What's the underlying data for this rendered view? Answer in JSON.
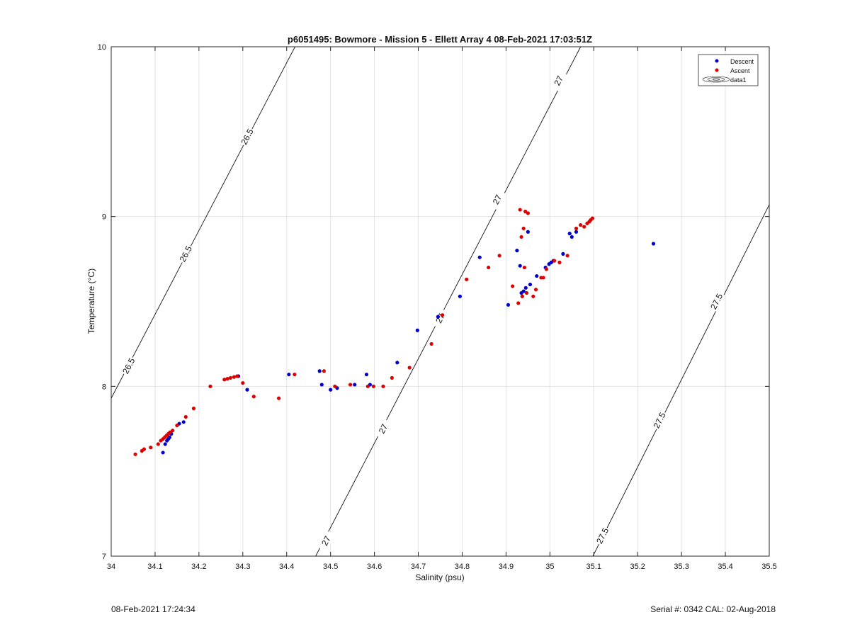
{
  "chart_data": {
    "type": "scatter",
    "title": "p6051495: Bowmore - Mission 5 - Ellett Array 4 08-Feb-2021 17:03:51Z",
    "xlabel": "Salinity (psu)",
    "ylabel": "Temperature (°C)",
    "xlim": [
      34.0,
      35.5
    ],
    "ylim": [
      7.0,
      10.0
    ],
    "x_ticks": [
      "34",
      "34.1",
      "34.2",
      "34.3",
      "34.4",
      "34.5",
      "34.6",
      "34.7",
      "34.8",
      "34.9",
      "35",
      "35.1",
      "35.2",
      "35.3",
      "35.4",
      "35.5"
    ],
    "y_ticks": [
      "7",
      "8",
      "9",
      "10"
    ],
    "grid": true,
    "legend_position": "top-right",
    "legend": [
      {
        "label": "Descent",
        "marker": "dot",
        "color": "#0000cc"
      },
      {
        "label": "Ascent",
        "marker": "dot",
        "color": "#dd0000"
      },
      {
        "label": "data1",
        "marker": "contour"
      }
    ],
    "contours": [
      {
        "level": "26.5",
        "points": [
          [
            34.0,
            7.93
          ],
          [
            34.419,
            10.0
          ]
        ],
        "labels": [
          {
            "x": 34.04,
            "y": 8.12
          },
          {
            "x": 34.17,
            "y": 8.78
          },
          {
            "x": 34.31,
            "y": 9.47
          }
        ]
      },
      {
        "level": "27",
        "points": [
          [
            34.466,
            7.0
          ],
          [
            35.07,
            10.0
          ]
        ],
        "labels": [
          {
            "x": 34.49,
            "y": 7.09
          },
          {
            "x": 34.62,
            "y": 7.75
          },
          {
            "x": 34.75,
            "y": 8.4
          },
          {
            "x": 34.88,
            "y": 9.1
          },
          {
            "x": 35.02,
            "y": 9.8
          }
        ]
      },
      {
        "level": "27.5",
        "points": [
          [
            35.098,
            7.0
          ],
          [
            35.5,
            9.07
          ]
        ],
        "labels": [
          {
            "x": 35.12,
            "y": 7.12
          },
          {
            "x": 35.25,
            "y": 7.8
          },
          {
            "x": 35.38,
            "y": 8.5
          }
        ]
      }
    ],
    "series": [
      {
        "name": "Descent",
        "color": "#0000cc",
        "points": [
          [
            34.118,
            7.61
          ],
          [
            34.123,
            7.66
          ],
          [
            34.127,
            7.68
          ],
          [
            34.13,
            7.69
          ],
          [
            34.133,
            7.7
          ],
          [
            34.137,
            7.72
          ],
          [
            34.155,
            7.78
          ],
          [
            34.165,
            7.79
          ],
          [
            34.29,
            8.06
          ],
          [
            34.31,
            7.98
          ],
          [
            34.405,
            8.07
          ],
          [
            34.475,
            8.09
          ],
          [
            34.48,
            8.01
          ],
          [
            34.5,
            7.98
          ],
          [
            34.515,
            7.99
          ],
          [
            34.555,
            8.01
          ],
          [
            34.582,
            8.07
          ],
          [
            34.59,
            8.01
          ],
          [
            34.652,
            8.14
          ],
          [
            34.698,
            8.33
          ],
          [
            34.745,
            8.41
          ],
          [
            34.795,
            8.53
          ],
          [
            34.84,
            8.76
          ],
          [
            34.905,
            8.48
          ],
          [
            34.925,
            8.8
          ],
          [
            34.932,
            8.71
          ],
          [
            34.935,
            8.55
          ],
          [
            34.94,
            8.56
          ],
          [
            34.945,
            8.58
          ],
          [
            34.95,
            8.91
          ],
          [
            34.955,
            8.6
          ],
          [
            34.97,
            8.65
          ],
          [
            34.99,
            8.7
          ],
          [
            34.998,
            8.72
          ],
          [
            35.003,
            8.73
          ],
          [
            35.008,
            8.74
          ],
          [
            35.03,
            8.78
          ],
          [
            35.045,
            8.9
          ],
          [
            35.05,
            8.88
          ],
          [
            35.06,
            8.91
          ],
          [
            35.236,
            8.84
          ]
        ]
      },
      {
        "name": "Ascent",
        "color": "#dd0000",
        "points": [
          [
            34.055,
            7.6
          ],
          [
            34.07,
            7.62
          ],
          [
            34.075,
            7.63
          ],
          [
            34.09,
            7.64
          ],
          [
            34.107,
            7.66
          ],
          [
            34.113,
            7.68
          ],
          [
            34.118,
            7.69
          ],
          [
            34.122,
            7.7
          ],
          [
            34.126,
            7.71
          ],
          [
            34.13,
            7.72
          ],
          [
            34.134,
            7.73
          ],
          [
            34.14,
            7.74
          ],
          [
            34.15,
            7.77
          ],
          [
            34.17,
            7.82
          ],
          [
            34.188,
            7.87
          ],
          [
            34.226,
            8.0
          ],
          [
            34.258,
            8.04
          ],
          [
            34.265,
            8.045
          ],
          [
            34.272,
            8.05
          ],
          [
            34.28,
            8.055
          ],
          [
            34.287,
            8.06
          ],
          [
            34.3,
            8.02
          ],
          [
            34.325,
            7.94
          ],
          [
            34.382,
            7.93
          ],
          [
            34.418,
            8.07
          ],
          [
            34.485,
            8.09
          ],
          [
            34.51,
            8.0
          ],
          [
            34.545,
            8.01
          ],
          [
            34.585,
            8.0
          ],
          [
            34.598,
            8.0
          ],
          [
            34.62,
            8.0
          ],
          [
            34.64,
            8.05
          ],
          [
            34.68,
            8.11
          ],
          [
            34.73,
            8.25
          ],
          [
            34.755,
            8.42
          ],
          [
            34.81,
            8.63
          ],
          [
            34.86,
            8.7
          ],
          [
            34.885,
            8.77
          ],
          [
            34.915,
            8.59
          ],
          [
            34.928,
            8.49
          ],
          [
            34.932,
            9.04
          ],
          [
            34.935,
            8.88
          ],
          [
            34.937,
            8.53
          ],
          [
            34.94,
            8.93
          ],
          [
            34.942,
            8.7
          ],
          [
            34.944,
            9.03
          ],
          [
            34.947,
            8.55
          ],
          [
            34.95,
            9.02
          ],
          [
            34.962,
            8.53
          ],
          [
            34.968,
            8.57
          ],
          [
            34.98,
            8.64
          ],
          [
            34.985,
            8.64
          ],
          [
            34.992,
            8.69
          ],
          [
            35.01,
            8.74
          ],
          [
            35.022,
            8.73
          ],
          [
            35.04,
            8.77
          ],
          [
            35.06,
            8.93
          ],
          [
            35.07,
            8.95
          ],
          [
            35.078,
            8.94
          ],
          [
            35.085,
            8.96
          ],
          [
            35.09,
            8.97
          ],
          [
            35.093,
            8.98
          ],
          [
            35.097,
            8.99
          ]
        ]
      }
    ]
  },
  "footer": {
    "timestamp": "08-Feb-2021 17:24:34",
    "serial": "Serial #: 0342  CAL: 02-Aug-2018"
  }
}
